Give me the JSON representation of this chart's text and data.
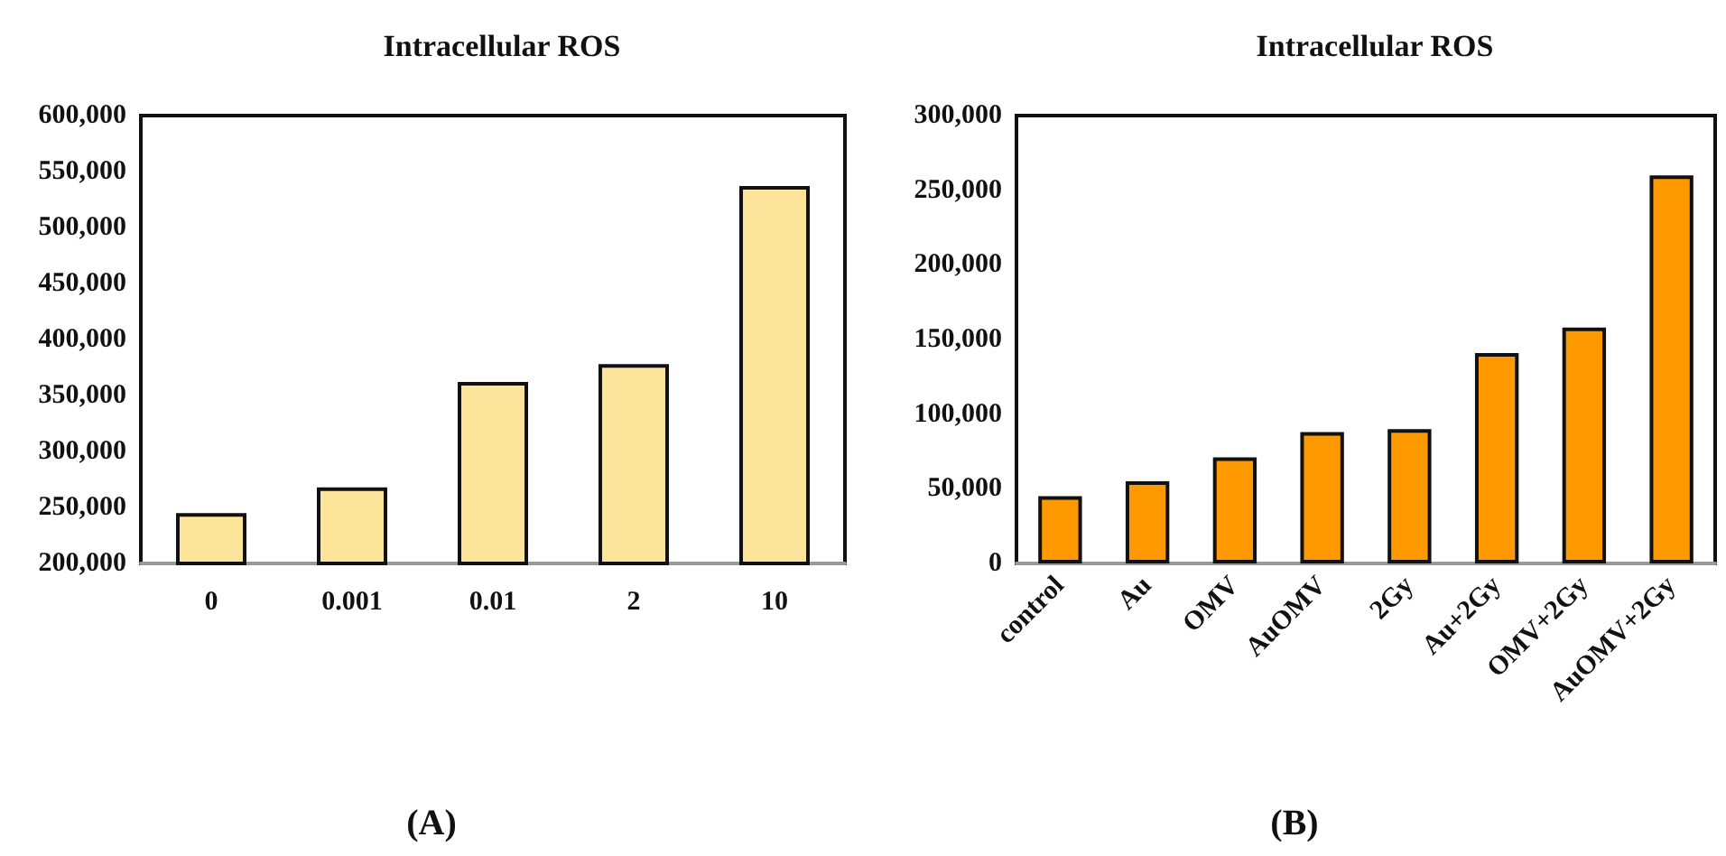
{
  "chart_data": [
    {
      "type": "bar",
      "title": "Intracellular ROS",
      "categories": [
        "0",
        "0.001",
        "0.01",
        "2",
        "10"
      ],
      "values": [
        245000,
        268000,
        362000,
        378000,
        537000
      ],
      "color": "#fde49b",
      "ylim": [
        200000,
        600000
      ],
      "yticks": [
        {
          "value": 200000,
          "label": "200,000"
        },
        {
          "value": 250000,
          "label": "250,000"
        },
        {
          "value": 300000,
          "label": "300,000"
        },
        {
          "value": 350000,
          "label": "350,000"
        },
        {
          "value": 400000,
          "label": "400,000"
        },
        {
          "value": 450000,
          "label": "450,000"
        },
        {
          "value": 500000,
          "label": "500,000"
        },
        {
          "value": 550000,
          "label": "550,000"
        },
        {
          "value": 600000,
          "label": "600,000"
        }
      ],
      "grid": false,
      "annotations": [
        "(A)"
      ]
    },
    {
      "type": "bar",
      "title": "Intracellular ROS",
      "categories": [
        "control",
        "Au",
        "OMV",
        "AuOMV",
        "2Gy",
        "Au+2Gy",
        "OMV+2Gy",
        "AuOMV+2Gy"
      ],
      "values": [
        45000,
        55000,
        71000,
        88000,
        90000,
        141000,
        158000,
        260000
      ],
      "color": "#ff9900",
      "ylim": [
        0,
        300000
      ],
      "yticks": [
        0,
        {
          "value": 50000,
          "label": "50,000"
        },
        {
          "value": 100000,
          "label": "100,000"
        },
        {
          "value": 150000,
          "label": "150,000"
        },
        {
          "value": 200000,
          "label": "200,000"
        },
        {
          "value": 250000,
          "label": "250,000"
        },
        {
          "value": 300000,
          "label": "300,000"
        }
      ],
      "grid": false,
      "annotations": [
        "(B)"
      ]
    }
  ]
}
